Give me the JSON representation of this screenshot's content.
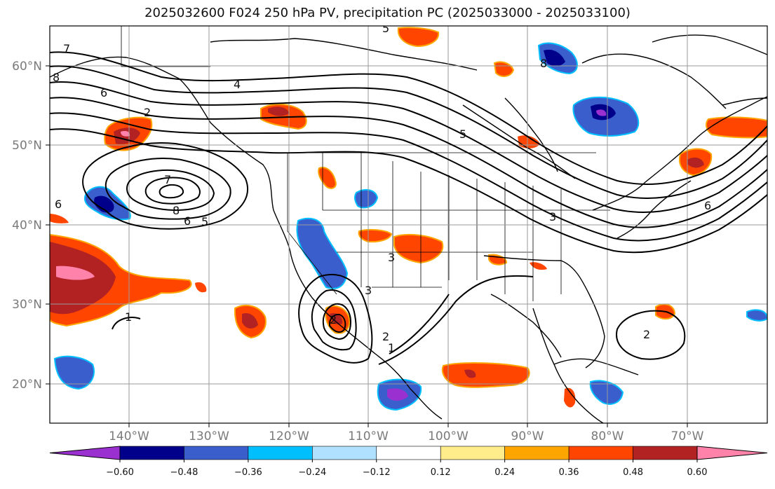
{
  "title": "2025032600 F024 250 hPa PV, precipitation PC (2025033000 - 2025033100)",
  "map": {
    "projection": "PlateCarree",
    "lon_range": [
      -150,
      -60
    ],
    "lat_range": [
      15,
      65
    ],
    "lat_ticks": [
      "60°N",
      "50°N",
      "40°N",
      "30°N",
      "20°N"
    ],
    "lon_ticks": [
      "140°W",
      "130°W",
      "120°W",
      "110°W",
      "100°W",
      "90°W",
      "80°W",
      "70°W"
    ],
    "grid": true,
    "pv_contour_labels": [
      "7",
      "8",
      "6",
      "4",
      "2",
      "7",
      "8",
      "6",
      "5",
      "6",
      "1",
      "5",
      "3",
      "3",
      "2",
      "2",
      "1",
      "2",
      "8",
      "5",
      "6",
      "3"
    ]
  },
  "colorbar": {
    "ticks": [
      "−0.60",
      "−0.48",
      "−0.36",
      "−0.24",
      "−0.12",
      "0.12",
      "0.24",
      "0.36",
      "0.48",
      "0.60"
    ],
    "colors": [
      "#9b30d0",
      "#00008b",
      "#3a5fcd",
      "#00bfff",
      "#b0e2ff",
      "#ffffff",
      "#ffec8b",
      "#ffa500",
      "#ff4500",
      "#b22222",
      "#ff82ab"
    ]
  }
}
